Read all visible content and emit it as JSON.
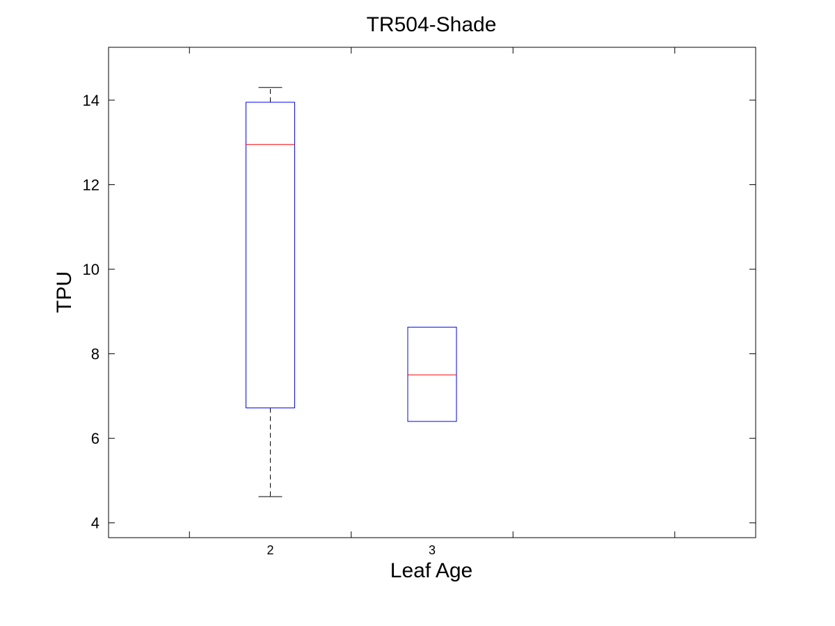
{
  "chart_data": {
    "type": "box",
    "title": "TR504-Shade",
    "xlabel": "Leaf Age",
    "ylabel": "TPU",
    "ylim": [
      3.65,
      15.25
    ],
    "yticks": [
      4,
      6,
      8,
      10,
      12,
      14
    ],
    "ytick_labels": [
      "4",
      "6",
      "8",
      "10",
      "12",
      "14"
    ],
    "x_positions": [
      1,
      2,
      3,
      4,
      5
    ],
    "xlim": [
      0.5,
      4.5
    ],
    "grid": false,
    "legend": "none",
    "boxes": [
      {
        "category": "2",
        "x": 1.5,
        "whisker_low": 4.62,
        "q1": 6.72,
        "median": 12.95,
        "q3": 13.95,
        "whisker_high": 14.3
      },
      {
        "category": "3",
        "x": 2.5,
        "whisker_low": 6.4,
        "q1": 6.4,
        "median": 7.5,
        "q3": 8.63,
        "whisker_high": 8.63
      }
    ],
    "colors": {
      "box": "#0000ff",
      "median": "#ff0000",
      "whisker": "#000000",
      "axes": "#000000"
    }
  }
}
